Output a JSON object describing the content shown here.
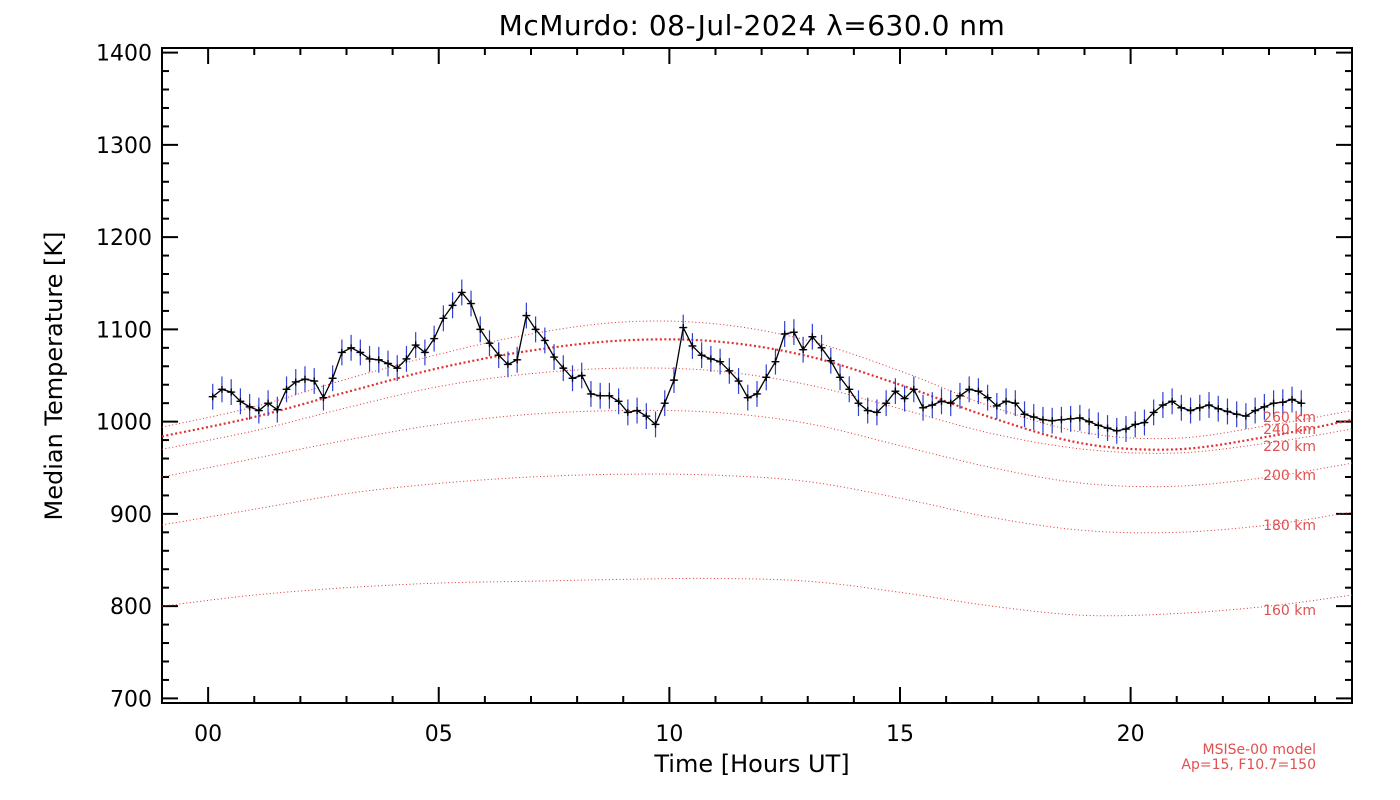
{
  "chart_data": {
    "type": "line",
    "title": "McMurdo: 08-Jul-2024 λ=630.0 nm",
    "xlabel": "Time [Hours UT]",
    "ylabel": "Median Temperature [K]",
    "xlim": [
      -1,
      24.8
    ],
    "ylim": [
      695,
      1405
    ],
    "x_ticks": [
      0,
      5,
      10,
      15,
      20
    ],
    "x_tick_labels": [
      "00",
      "05",
      "10",
      "15",
      "20"
    ],
    "y_ticks": [
      700,
      800,
      900,
      1000,
      1100,
      1200,
      1300,
      1400
    ],
    "y_tick_labels": [
      "700",
      "800",
      "900",
      "1000",
      "1100",
      "1200",
      "1300",
      "1400"
    ],
    "colors": {
      "data_line": "#000000",
      "error_bars": "#3040d0",
      "model": "#e03030",
      "model_label": "#e05050"
    },
    "series": {
      "x": [
        0.1,
        0.3,
        0.5,
        0.7,
        0.9,
        1.1,
        1.3,
        1.5,
        1.7,
        1.9,
        2.1,
        2.3,
        2.5,
        2.7,
        2.9,
        3.1,
        3.3,
        3.5,
        3.7,
        3.9,
        4.1,
        4.3,
        4.5,
        4.7,
        4.9,
        5.1,
        5.3,
        5.5,
        5.7,
        5.9,
        6.1,
        6.3,
        6.5,
        6.7,
        6.9,
        7.1,
        7.3,
        7.5,
        7.7,
        7.9,
        8.1,
        8.3,
        8.5,
        8.7,
        8.9,
        9.1,
        9.3,
        9.5,
        9.7,
        9.9,
        10.1,
        10.3,
        10.5,
        10.7,
        10.9,
        11.1,
        11.3,
        11.5,
        11.7,
        11.9,
        12.1,
        12.3,
        12.5,
        12.7,
        12.9,
        13.1,
        13.3,
        13.5,
        13.7,
        13.9,
        14.1,
        14.3,
        14.5,
        14.7,
        14.9,
        15.1,
        15.3,
        15.5,
        15.7,
        15.9,
        16.1,
        16.3,
        16.5,
        16.7,
        16.9,
        17.1,
        17.3,
        17.5,
        17.7,
        17.9,
        18.1,
        18.3,
        18.5,
        18.7,
        18.9,
        19.1,
        19.3,
        19.5,
        19.7,
        19.9,
        20.1,
        20.3,
        20.5,
        20.7,
        20.9,
        21.1,
        21.3,
        21.5,
        21.7,
        21.9,
        22.1,
        22.3,
        22.5,
        22.7,
        22.9,
        23.1,
        23.3,
        23.5,
        23.7
      ],
      "y": [
        1027,
        1035,
        1032,
        1022,
        1016,
        1012,
        1020,
        1013,
        1035,
        1043,
        1046,
        1044,
        1026,
        1047,
        1075,
        1080,
        1075,
        1068,
        1067,
        1063,
        1058,
        1068,
        1083,
        1075,
        1090,
        1112,
        1126,
        1140,
        1128,
        1100,
        1085,
        1072,
        1062,
        1067,
        1115,
        1100,
        1088,
        1070,
        1058,
        1047,
        1050,
        1030,
        1028,
        1028,
        1022,
        1010,
        1012,
        1006,
        997,
        1020,
        1045,
        1102,
        1082,
        1072,
        1068,
        1065,
        1055,
        1044,
        1026,
        1030,
        1048,
        1065,
        1095,
        1097,
        1078,
        1092,
        1080,
        1066,
        1048,
        1035,
        1020,
        1012,
        1010,
        1020,
        1033,
        1025,
        1035,
        1015,
        1018,
        1022,
        1020,
        1028,
        1035,
        1033,
        1026,
        1017,
        1022,
        1020,
        1008,
        1005,
        1002,
        1001,
        1002,
        1003,
        1004,
        1000,
        996,
        993,
        990,
        992,
        997,
        999,
        1010,
        1018,
        1022,
        1015,
        1012,
        1015,
        1018,
        1014,
        1011,
        1008,
        1006,
        1012,
        1016,
        1020,
        1021,
        1024,
        1020
      ]
    },
    "model_curves": [
      {
        "name": "160 km",
        "x": [
          -1,
          1,
          3,
          5,
          7,
          9,
          11,
          13,
          15,
          17,
          19,
          21,
          23,
          24.8
        ],
        "y": [
          800,
          812,
          820,
          825,
          827,
          829,
          830,
          827,
          815,
          800,
          790,
          792,
          800,
          812
        ]
      },
      {
        "name": "180 km",
        "x": [
          -1,
          1,
          3,
          5,
          7,
          9,
          11,
          13,
          15,
          17,
          19,
          21,
          23,
          24.8
        ],
        "y": [
          888,
          905,
          922,
          933,
          940,
          943,
          942,
          935,
          917,
          896,
          882,
          880,
          888,
          902
        ]
      },
      {
        "name": "200 km",
        "x": [
          -1,
          1,
          3,
          5,
          7,
          9,
          11,
          13,
          15,
          17,
          19,
          21,
          23,
          24.8
        ],
        "y": [
          940,
          960,
          980,
          997,
          1008,
          1012,
          1010,
          998,
          974,
          950,
          933,
          930,
          940,
          955
        ]
      },
      {
        "name": "220 km",
        "x": [
          -1,
          1,
          3,
          5,
          7,
          9,
          11,
          13,
          15,
          17,
          19,
          21,
          23,
          24.8
        ],
        "y": [
          970,
          990,
          1015,
          1038,
          1052,
          1058,
          1055,
          1040,
          1014,
          987,
          970,
          966,
          977,
          992
        ]
      },
      {
        "name": "240 km",
        "x": [
          -1,
          1,
          3,
          5,
          7,
          9,
          11,
          13,
          15,
          17,
          19,
          21,
          23,
          24.8
        ],
        "y": [
          984,
          1005,
          1032,
          1058,
          1077,
          1088,
          1087,
          1071,
          1040,
          1004,
          976,
          970,
          984,
          1002
        ]
      },
      {
        "name": "260 km",
        "x": [
          -1,
          1,
          3,
          5,
          7,
          9,
          11,
          13,
          15,
          17,
          19,
          21,
          23,
          24.8
        ],
        "y": [
          994,
          1016,
          1046,
          1073,
          1095,
          1108,
          1106,
          1088,
          1055,
          1016,
          988,
          982,
          996,
          1012
        ]
      }
    ],
    "model_labels": [
      "260 km",
      "240 km",
      "220 km",
      "200 km",
      "180 km",
      "160 km"
    ],
    "model_note": [
      "MSISe-00 model",
      "Ap=15, F10.7=150"
    ]
  }
}
